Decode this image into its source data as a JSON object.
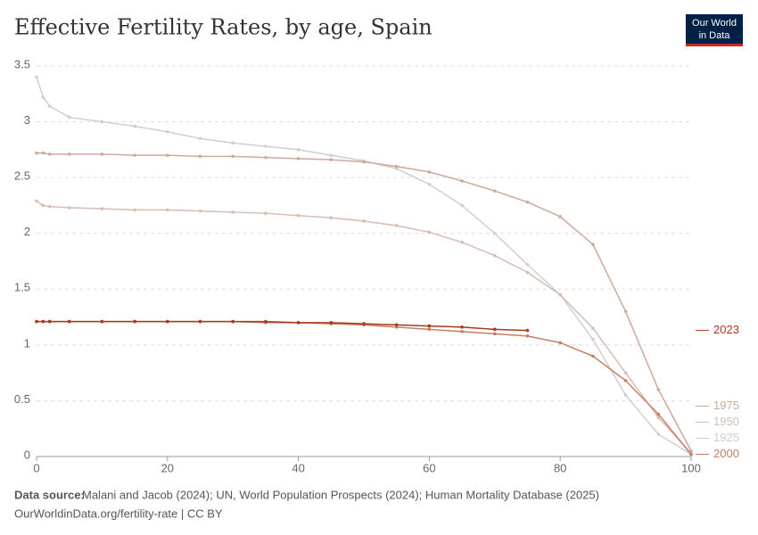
{
  "chart_data": {
    "type": "line",
    "title": "Effective Fertility Rates, by age, Spain",
    "logo": [
      "Our World",
      "in Data"
    ],
    "source_label": "Data source:",
    "source": "Malani and Jacob (2024); UN, World Population Prospects (2024); Human Mortality Database (2025)",
    "footer": "OurWorldinData.org/fertility-rate | CC BY",
    "x": [
      0,
      1,
      2,
      5,
      10,
      15,
      20,
      25,
      30,
      35,
      40,
      45,
      50,
      55,
      60,
      65,
      70,
      75,
      80,
      85,
      90,
      95,
      100
    ],
    "xlim": [
      0,
      100
    ],
    "xticks": [
      0,
      20,
      40,
      60,
      80,
      100
    ],
    "ylim": [
      0,
      3.5
    ],
    "yticks": [
      0,
      0.5,
      1,
      1.5,
      2,
      2.5,
      3,
      3.5
    ],
    "grid": true,
    "series": [
      {
        "name": "1925",
        "color": "#cfcfcf",
        "values": [
          3.4,
          3.22,
          3.14,
          3.04,
          3.0,
          2.96,
          2.91,
          2.85,
          2.81,
          2.78,
          2.75,
          2.7,
          2.65,
          2.58,
          2.44,
          2.25,
          2.0,
          1.72,
          1.45,
          1.05,
          0.55,
          0.2,
          0.02
        ]
      },
      {
        "name": "1950",
        "color": "#d8bdb3",
        "values": [
          2.29,
          2.25,
          2.24,
          2.23,
          2.22,
          2.21,
          2.21,
          2.2,
          2.19,
          2.18,
          2.16,
          2.14,
          2.11,
          2.07,
          2.01,
          1.92,
          1.8,
          1.65,
          1.45,
          1.15,
          0.75,
          0.35,
          0.03
        ]
      },
      {
        "name": "1975",
        "color": "#cfa89c",
        "values": [
          2.72,
          2.72,
          2.71,
          2.71,
          2.71,
          2.7,
          2.7,
          2.69,
          2.69,
          2.68,
          2.67,
          2.66,
          2.64,
          2.6,
          2.55,
          2.47,
          2.38,
          2.28,
          2.15,
          1.9,
          1.3,
          0.6,
          0.05
        ]
      },
      {
        "name": "2000",
        "color": "#c48066",
        "values": [
          1.21,
          1.21,
          1.21,
          1.21,
          1.21,
          1.21,
          1.21,
          1.21,
          1.21,
          1.2,
          1.2,
          1.19,
          1.18,
          1.16,
          1.14,
          1.12,
          1.1,
          1.08,
          1.02,
          0.9,
          0.68,
          0.38,
          0.02
        ]
      },
      {
        "name": "2023",
        "color": "#a83a1c",
        "values": [
          1.21,
          1.21,
          1.21,
          1.21,
          1.21,
          1.21,
          1.21,
          1.21,
          1.21,
          1.21,
          1.2,
          1.2,
          1.19,
          1.18,
          1.17,
          1.16,
          1.14,
          1.13,
          null,
          null,
          null,
          null,
          null
        ]
      }
    ]
  }
}
